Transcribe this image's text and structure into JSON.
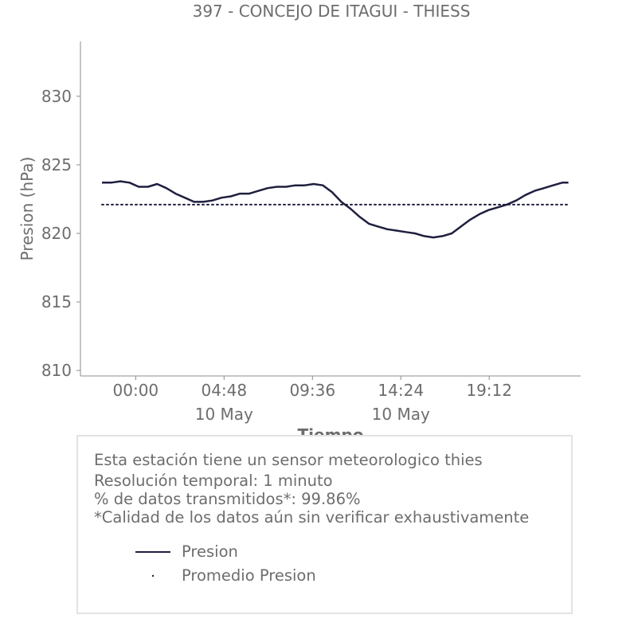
{
  "chart_data": {
    "type": "line",
    "title": "397 - CONCEJO DE ITAGUI - THIESS",
    "xlabel": "Tiempo",
    "ylabel": "Presion (hPa)",
    "ylim": [
      809.6,
      834
    ],
    "xlim_minutes": [
      -180,
      1450
    ],
    "y_ticks": [
      810,
      815,
      820,
      825,
      830
    ],
    "x_ticks": [
      {
        "minute": 0,
        "label": "00:00",
        "sublabel": ""
      },
      {
        "minute": 288,
        "label": "04:48",
        "sublabel": "10 May"
      },
      {
        "minute": 576,
        "label": "09:36",
        "sublabel": ""
      },
      {
        "minute": 864,
        "label": "14:24",
        "sublabel": "10 May"
      },
      {
        "minute": 1152,
        "label": "19:12",
        "sublabel": ""
      }
    ],
    "series": [
      {
        "name": "Presion",
        "color": "#1f1f3f",
        "x_minutes": [
          -110,
          -80,
          -50,
          -20,
          10,
          40,
          70,
          100,
          130,
          160,
          190,
          220,
          250,
          280,
          310,
          340,
          370,
          400,
          430,
          460,
          490,
          520,
          550,
          580,
          610,
          640,
          670,
          700,
          730,
          760,
          790,
          820,
          850,
          880,
          910,
          940,
          970,
          1000,
          1030,
          1060,
          1090,
          1120,
          1150,
          1180,
          1210,
          1240,
          1270,
          1300,
          1330,
          1360,
          1390,
          1410
        ],
        "values": [
          823.7,
          823.7,
          823.8,
          823.7,
          823.4,
          823.4,
          823.6,
          823.3,
          822.9,
          822.6,
          822.3,
          822.3,
          822.4,
          822.6,
          822.7,
          822.9,
          822.9,
          823.1,
          823.3,
          823.4,
          823.4,
          823.5,
          823.5,
          823.6,
          823.5,
          823.0,
          822.3,
          821.8,
          821.2,
          820.7,
          820.5,
          820.3,
          820.2,
          820.1,
          820.0,
          819.8,
          819.7,
          819.8,
          820.0,
          820.5,
          821.0,
          821.4,
          821.7,
          821.9,
          822.1,
          822.4,
          822.8,
          823.1,
          823.3,
          823.5,
          823.7,
          823.7
        ]
      },
      {
        "name": "Promedio Presion",
        "color": "#1f1f3f",
        "style": "dotted",
        "x_minutes": [
          -110,
          1410
        ],
        "values": [
          822.1,
          822.1
        ]
      }
    ],
    "grid": false,
    "legend_position": "below"
  },
  "info": {
    "line1": "Esta estación tiene un sensor meteorologico thies",
    "line2": "Resolución temporal: 1 minuto",
    "line3": "% de datos transmitidos*: 99.86%",
    "line4": "*Calidad de los datos aún sin verificar exhaustivamente"
  },
  "colors": {
    "series": "#1f1f3f",
    "text": "#6d6d6d",
    "axis": "#8c8c8c",
    "box_border": "#e3e3e3"
  }
}
